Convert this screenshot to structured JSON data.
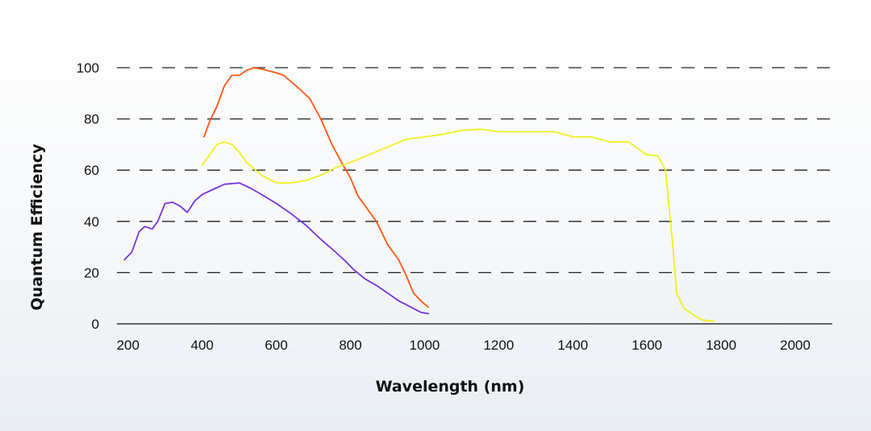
{
  "chart_data": {
    "type": "line",
    "title": "",
    "xlabel": "Wavelength (nm)",
    "ylabel": "Quantum Efficiency",
    "xlim": [
      170,
      2100
    ],
    "ylim": [
      0,
      100
    ],
    "xticks": [
      200,
      400,
      600,
      800,
      1000,
      1200,
      1400,
      1600,
      1800,
      2000
    ],
    "yticks": [
      0,
      20,
      40,
      60,
      80,
      100
    ],
    "grid": "horizontal dashed",
    "legend": "none",
    "colors": {
      "purple": "#7733dd",
      "orange": "#ff5511",
      "yellow": "#f0f020",
      "grid": "#222222",
      "axis": "#333333"
    },
    "series": [
      {
        "color": "#7733dd",
        "points": [
          [
            190,
            25
          ],
          [
            210,
            28
          ],
          [
            230,
            36
          ],
          [
            245,
            38
          ],
          [
            265,
            37
          ],
          [
            280,
            40
          ],
          [
            300,
            47
          ],
          [
            320,
            47.5
          ],
          [
            340,
            46
          ],
          [
            360,
            43.5
          ],
          [
            380,
            48
          ],
          [
            400,
            50.5
          ],
          [
            430,
            52.5
          ],
          [
            460,
            54.5
          ],
          [
            500,
            55
          ],
          [
            530,
            53
          ],
          [
            560,
            50.5
          ],
          [
            600,
            47
          ],
          [
            640,
            43
          ],
          [
            680,
            38.5
          ],
          [
            720,
            33
          ],
          [
            760,
            28
          ],
          [
            790,
            24
          ],
          [
            810,
            21
          ],
          [
            840,
            17.5
          ],
          [
            870,
            15
          ],
          [
            900,
            12
          ],
          [
            930,
            9
          ],
          [
            950,
            7.5
          ],
          [
            970,
            6
          ],
          [
            990,
            4.5
          ],
          [
            1010,
            4
          ]
        ]
      },
      {
        "color": "#ff5511",
        "points": [
          [
            405,
            73
          ],
          [
            420,
            79
          ],
          [
            440,
            85
          ],
          [
            460,
            93
          ],
          [
            480,
            97
          ],
          [
            500,
            97
          ],
          [
            520,
            99
          ],
          [
            540,
            100
          ],
          [
            560,
            99.5
          ],
          [
            600,
            98
          ],
          [
            620,
            97
          ],
          [
            660,
            92
          ],
          [
            690,
            88
          ],
          [
            720,
            80
          ],
          [
            750,
            70
          ],
          [
            780,
            62
          ],
          [
            800,
            57
          ],
          [
            820,
            50
          ],
          [
            850,
            44
          ],
          [
            870,
            40
          ],
          [
            900,
            31
          ],
          [
            930,
            25
          ],
          [
            950,
            19
          ],
          [
            970,
            12
          ],
          [
            990,
            9
          ],
          [
            1010,
            6.5
          ]
        ]
      },
      {
        "color": "#f0f020",
        "points": [
          [
            400,
            62
          ],
          [
            420,
            66
          ],
          [
            440,
            70
          ],
          [
            460,
            71
          ],
          [
            480,
            70
          ],
          [
            500,
            67
          ],
          [
            520,
            63
          ],
          [
            560,
            58
          ],
          [
            600,
            55
          ],
          [
            640,
            55
          ],
          [
            680,
            56
          ],
          [
            720,
            58
          ],
          [
            760,
            61
          ],
          [
            800,
            63
          ],
          [
            850,
            66
          ],
          [
            900,
            69
          ],
          [
            950,
            72
          ],
          [
            1000,
            73
          ],
          [
            1050,
            74
          ],
          [
            1100,
            75.5
          ],
          [
            1150,
            76
          ],
          [
            1200,
            75
          ],
          [
            1250,
            75
          ],
          [
            1300,
            75
          ],
          [
            1350,
            75
          ],
          [
            1400,
            73
          ],
          [
            1450,
            73
          ],
          [
            1500,
            71
          ],
          [
            1550,
            71
          ],
          [
            1600,
            66
          ],
          [
            1630,
            65.5
          ],
          [
            1650,
            60
          ],
          [
            1670,
            30
          ],
          [
            1680,
            12
          ],
          [
            1700,
            6
          ],
          [
            1730,
            3
          ],
          [
            1750,
            1.5
          ],
          [
            1780,
            1
          ]
        ]
      }
    ]
  }
}
